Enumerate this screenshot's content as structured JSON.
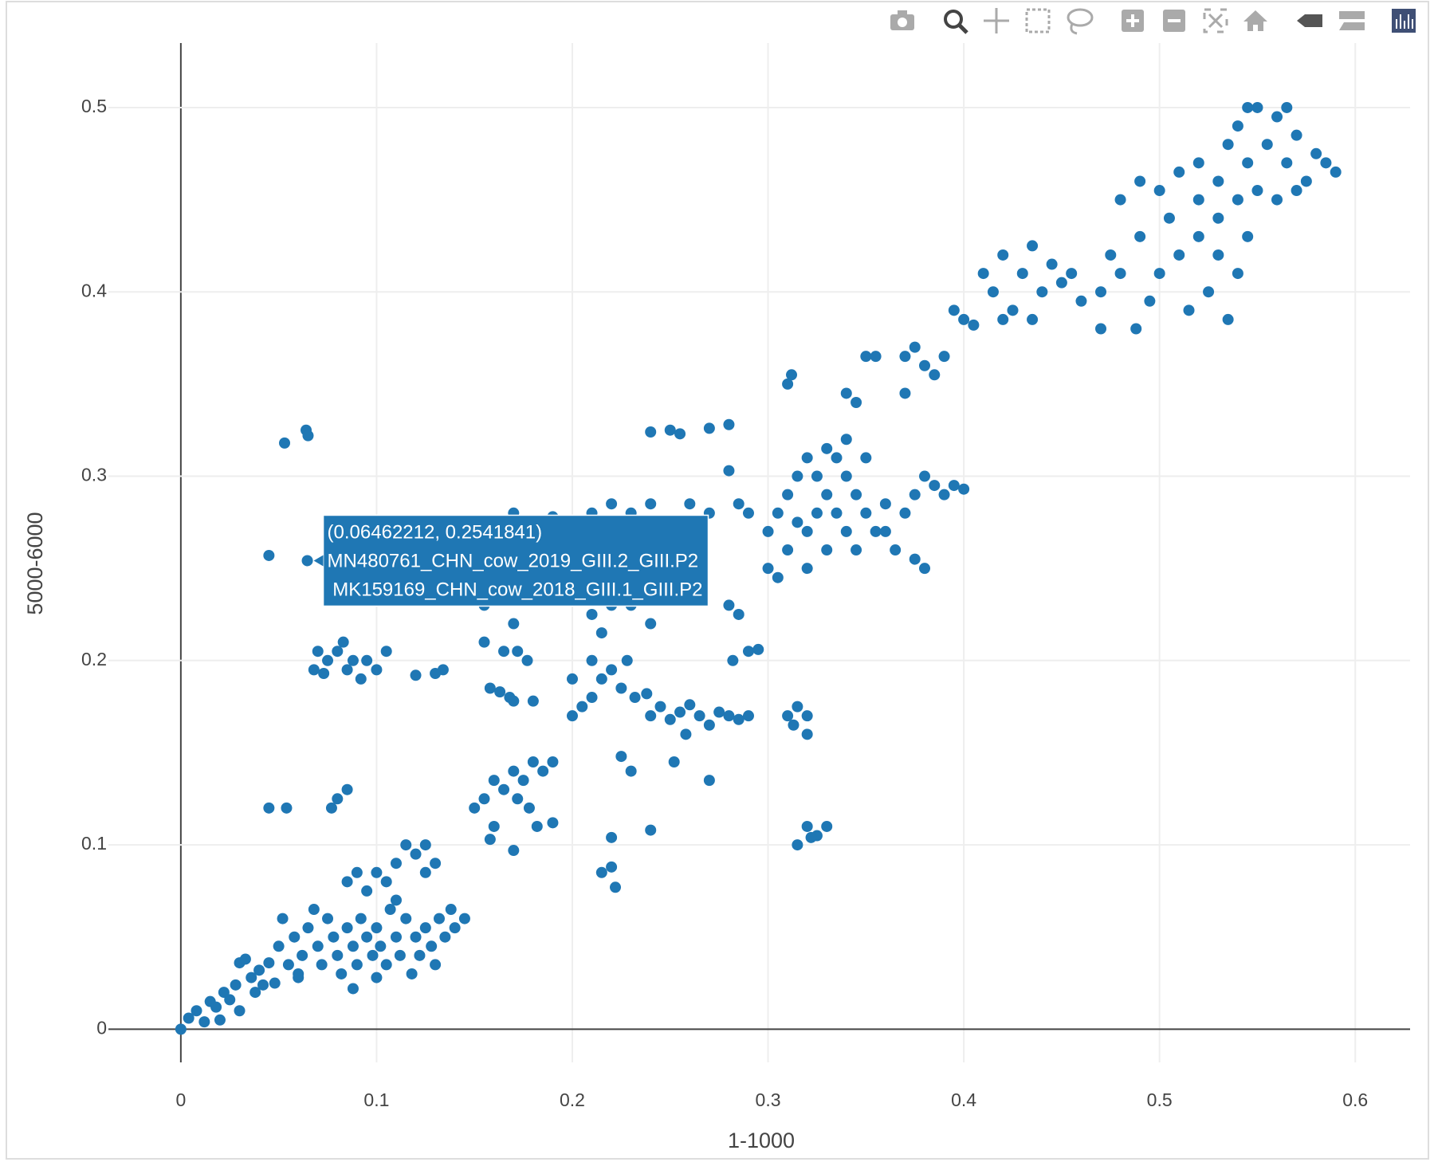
{
  "chart_data": {
    "type": "scatter",
    "color": "#1f77b4",
    "x_label": "1-1000",
    "y_label": "5000-6000",
    "xlim": [
      -0.037,
      0.628
    ],
    "ylim": [
      -0.018,
      0.535
    ],
    "xticks": [
      0,
      0.1,
      0.2,
      0.3,
      0.4,
      0.5,
      0.6
    ],
    "yticks": [
      0,
      0.1,
      0.2,
      0.3,
      0.4,
      0.5
    ],
    "grid": true,
    "hover_lines": [
      "(0.06462212, 0.2541841)",
      "MN480761_CHN_cow_2019_GIII.2_GIII.P2",
      " MK159169_CHN_cow_2018_GIII.1_GIII.P2"
    ],
    "x": [
      0.06462212,
      0,
      0.004,
      0.008,
      0.012,
      0.015,
      0.018,
      0.022,
      0.025,
      0.028,
      0.03,
      0.033,
      0.036,
      0.04,
      0.042,
      0.038,
      0.02,
      0.03,
      0.045,
      0.05,
      0.052,
      0.055,
      0.058,
      0.06,
      0.062,
      0.065,
      0.068,
      0.07,
      0.072,
      0.075,
      0.078,
      0.08,
      0.082,
      0.085,
      0.088,
      0.09,
      0.092,
      0.095,
      0.098,
      0.1,
      0.102,
      0.105,
      0.107,
      0.11,
      0.112,
      0.115,
      0.118,
      0.12,
      0.122,
      0.125,
      0.128,
      0.13,
      0.132,
      0.135,
      0.138,
      0.14,
      0.145,
      0.088,
      0.1,
      0.06,
      0.048,
      0.11,
      0.095,
      0.085,
      0.09,
      0.1,
      0.11,
      0.115,
      0.12,
      0.125,
      0.13,
      0.125,
      0.105,
      0.045,
      0.054,
      0.077,
      0.08,
      0.085,
      0.045,
      0.053,
      0.064,
      0.065,
      0.068,
      0.07,
      0.075,
      0.08,
      0.083,
      0.085,
      0.088,
      0.092,
      0.095,
      0.1,
      0.105,
      0.073,
      0.12,
      0.134,
      0.13,
      0.15,
      0.155,
      0.16,
      0.165,
      0.17,
      0.175,
      0.18,
      0.185,
      0.19,
      0.172,
      0.178,
      0.182,
      0.16,
      0.17,
      0.19,
      0.158,
      0.158,
      0.163,
      0.168,
      0.172,
      0.177,
      0.165,
      0.17,
      0.18,
      0.155,
      0.2,
      0.205,
      0.21,
      0.215,
      0.22,
      0.225,
      0.2,
      0.21,
      0.228,
      0.232,
      0.238,
      0.24,
      0.245,
      0.25,
      0.255,
      0.26,
      0.265,
      0.27,
      0.275,
      0.28,
      0.285,
      0.29,
      0.258,
      0.252,
      0.27,
      0.22,
      0.22,
      0.215,
      0.222,
      0.225,
      0.23,
      0.24,
      0.31,
      0.315,
      0.32,
      0.313,
      0.32,
      0.315,
      0.32,
      0.325,
      0.33,
      0.322,
      0.16,
      0.17,
      0.18,
      0.19,
      0.2,
      0.21,
      0.22,
      0.23,
      0.24,
      0.26,
      0.27,
      0.285,
      0.29,
      0.155,
      0.16,
      0.17,
      0.2,
      0.21,
      0.215,
      0.22,
      0.23,
      0.24,
      0.25,
      0.26,
      0.28,
      0.285,
      0.29,
      0.295,
      0.282,
      0.24,
      0.25,
      0.255,
      0.27,
      0.28,
      0.28,
      0.3,
      0.305,
      0.31,
      0.315,
      0.32,
      0.325,
      0.33,
      0.335,
      0.34,
      0.345,
      0.35,
      0.355,
      0.31,
      0.32,
      0.33,
      0.34,
      0.325,
      0.315,
      0.335,
      0.345,
      0.32,
      0.33,
      0.34,
      0.35,
      0.36,
      0.3,
      0.305,
      0.36,
      0.365,
      0.37,
      0.375,
      0.38,
      0.385,
      0.39,
      0.395,
      0.4,
      0.375,
      0.38,
      0.31,
      0.312,
      0.34,
      0.345,
      0.35,
      0.355,
      0.37,
      0.375,
      0.38,
      0.385,
      0.37,
      0.39,
      0.395,
      0.4,
      0.405,
      0.41,
      0.415,
      0.42,
      0.425,
      0.43,
      0.435,
      0.44,
      0.445,
      0.45,
      0.42,
      0.435,
      0.455,
      0.46,
      0.47,
      0.475,
      0.48,
      0.49,
      0.495,
      0.5,
      0.505,
      0.51,
      0.515,
      0.52,
      0.525,
      0.53,
      0.535,
      0.54,
      0.545,
      0.48,
      0.49,
      0.5,
      0.47,
      0.488,
      0.51,
      0.52,
      0.53,
      0.535,
      0.54,
      0.545,
      0.55,
      0.555,
      0.56,
      0.565,
      0.57,
      0.575,
      0.58,
      0.585,
      0.59,
      0.55,
      0.56,
      0.54,
      0.53,
      0.52,
      0.57,
      0.545,
      0.565
    ],
    "values": [
      0.2541841,
      0,
      0.006,
      0.01,
      0.004,
      0.015,
      0.012,
      0.02,
      0.016,
      0.024,
      0.036,
      0.038,
      0.028,
      0.032,
      0.024,
      0.02,
      0.005,
      0.01,
      0.036,
      0.045,
      0.06,
      0.035,
      0.05,
      0.028,
      0.04,
      0.055,
      0.065,
      0.045,
      0.035,
      0.06,
      0.05,
      0.04,
      0.03,
      0.055,
      0.045,
      0.035,
      0.06,
      0.05,
      0.04,
      0.055,
      0.045,
      0.035,
      0.065,
      0.05,
      0.04,
      0.06,
      0.03,
      0.05,
      0.04,
      0.055,
      0.045,
      0.035,
      0.06,
      0.05,
      0.065,
      0.055,
      0.06,
      0.022,
      0.028,
      0.03,
      0.025,
      0.07,
      0.075,
      0.08,
      0.085,
      0.085,
      0.09,
      0.1,
      0.095,
      0.1,
      0.09,
      0.085,
      0.08,
      0.12,
      0.12,
      0.12,
      0.125,
      0.13,
      0.257,
      0.318,
      0.325,
      0.322,
      0.195,
      0.205,
      0.2,
      0.205,
      0.21,
      0.195,
      0.2,
      0.19,
      0.2,
      0.195,
      0.205,
      0.193,
      0.192,
      0.195,
      0.193,
      0.12,
      0.125,
      0.135,
      0.13,
      0.14,
      0.135,
      0.145,
      0.14,
      0.145,
      0.125,
      0.12,
      0.11,
      0.11,
      0.097,
      0.112,
      0.103,
      0.185,
      0.183,
      0.18,
      0.205,
      0.2,
      0.205,
      0.178,
      0.178,
      0.21,
      0.17,
      0.175,
      0.18,
      0.19,
      0.195,
      0.185,
      0.19,
      0.2,
      0.2,
      0.18,
      0.182,
      0.17,
      0.175,
      0.168,
      0.172,
      0.176,
      0.17,
      0.165,
      0.172,
      0.17,
      0.168,
      0.17,
      0.16,
      0.145,
      0.135,
      0.104,
      0.088,
      0.085,
      0.077,
      0.148,
      0.14,
      0.108,
      0.17,
      0.175,
      0.17,
      0.165,
      0.16,
      0.1,
      0.11,
      0.105,
      0.11,
      0.104,
      0.275,
      0.28,
      0.275,
      0.278,
      0.275,
      0.28,
      0.285,
      0.28,
      0.285,
      0.285,
      0.28,
      0.285,
      0.28,
      0.23,
      0.245,
      0.22,
      0.235,
      0.225,
      0.215,
      0.23,
      0.23,
      0.22,
      0.24,
      0.235,
      0.23,
      0.225,
      0.205,
      0.206,
      0.2,
      0.324,
      0.325,
      0.323,
      0.326,
      0.328,
      0.303,
      0.27,
      0.28,
      0.29,
      0.3,
      0.31,
      0.3,
      0.29,
      0.31,
      0.3,
      0.29,
      0.28,
      0.27,
      0.26,
      0.25,
      0.26,
      0.27,
      0.28,
      0.275,
      0.28,
      0.26,
      0.27,
      0.315,
      0.32,
      0.31,
      0.285,
      0.25,
      0.245,
      0.27,
      0.26,
      0.28,
      0.29,
      0.3,
      0.295,
      0.29,
      0.295,
      0.293,
      0.255,
      0.25,
      0.35,
      0.355,
      0.345,
      0.34,
      0.365,
      0.365,
      0.365,
      0.37,
      0.36,
      0.355,
      0.345,
      0.365,
      0.39,
      0.385,
      0.382,
      0.41,
      0.4,
      0.42,
      0.39,
      0.41,
      0.425,
      0.4,
      0.415,
      0.405,
      0.385,
      0.385,
      0.41,
      0.395,
      0.4,
      0.42,
      0.41,
      0.43,
      0.395,
      0.41,
      0.44,
      0.42,
      0.39,
      0.43,
      0.4,
      0.42,
      0.385,
      0.41,
      0.43,
      0.45,
      0.46,
      0.455,
      0.38,
      0.38,
      0.465,
      0.47,
      0.46,
      0.48,
      0.49,
      0.47,
      0.5,
      0.48,
      0.495,
      0.47,
      0.485,
      0.46,
      0.475,
      0.47,
      0.465,
      0.455,
      0.45,
      0.45,
      0.44,
      0.45,
      0.455,
      0.5,
      0.5
    ]
  }
}
